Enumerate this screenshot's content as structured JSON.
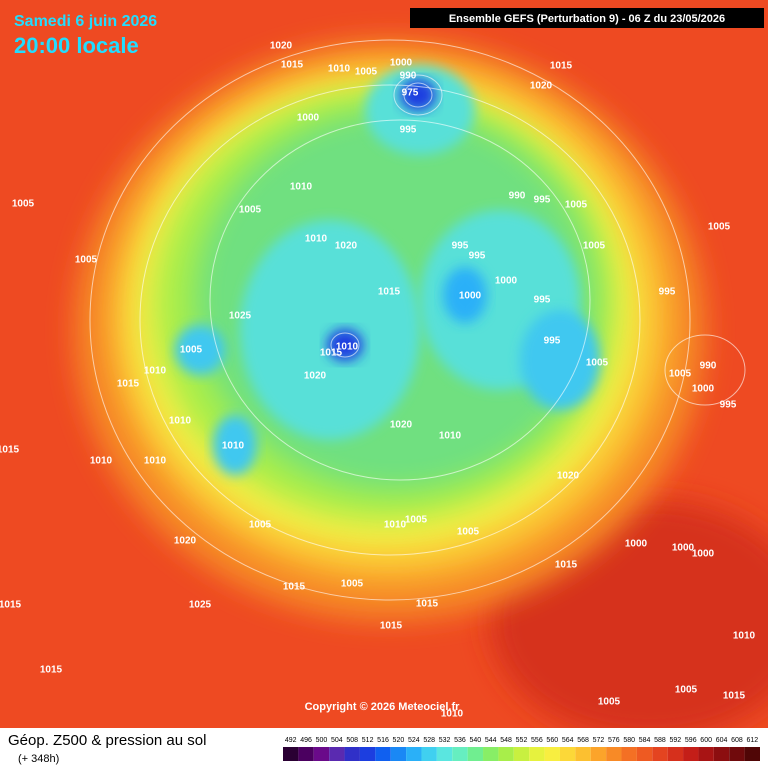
{
  "header": {
    "date": "Samedi 6 juin 2026",
    "time": "20:00 locale",
    "model": "Ensemble GEFS  (Perturbation 9)  -  06 Z du 23/05/2026"
  },
  "copyright": "Copyright © 2026 Meteociel.fr",
  "footer": {
    "title": "Géop. Z500 & pression au sol",
    "lead": "(+ 348h)"
  },
  "colorbar": {
    "values": [
      492,
      496,
      500,
      504,
      508,
      512,
      516,
      520,
      524,
      528,
      532,
      536,
      540,
      544,
      548,
      552,
      556,
      560,
      564,
      568,
      572,
      576,
      580,
      584,
      588,
      592,
      596,
      600,
      604,
      608,
      612
    ],
    "colors": [
      "#2a0033",
      "#4b0060",
      "#6a0a8a",
      "#5a2ab0",
      "#3030c8",
      "#1c3ee0",
      "#1060f0",
      "#1a88f5",
      "#2ab0f8",
      "#40d0f0",
      "#5ae6e0",
      "#66eec0",
      "#70ee90",
      "#88ee66",
      "#a8ee4a",
      "#c8f040",
      "#e6f23e",
      "#f8ee40",
      "#fcd838",
      "#fcc030",
      "#fca42a",
      "#f88a26",
      "#f47024",
      "#ee5a22",
      "#e44420",
      "#d6301c",
      "#c41e18",
      "#a81414",
      "#8c0e10",
      "#700a0c",
      "#500606"
    ]
  },
  "isobars": {
    "labels": [
      "1020",
      "1015",
      "1010",
      "1005",
      "1000",
      "990",
      "975",
      "1015",
      "1020",
      "1000",
      "995",
      "1010",
      "990",
      "995",
      "1005",
      "1005",
      "1010",
      "1020",
      "995",
      "995",
      "1005",
      "1005",
      "1005",
      "1000",
      "1015",
      "1000",
      "995",
      "995",
      "1025",
      "1010",
      "1015",
      "1005",
      "995",
      "1005",
      "990",
      "1020",
      "1015",
      "1010",
      "1005",
      "1000",
      "995",
      "1010",
      "1020",
      "1010",
      "1010",
      "1015",
      "1010",
      "1010",
      "1020",
      "1005",
      "1010",
      "1005",
      "1005",
      "1020",
      "1000",
      "1000",
      "1000",
      "1015",
      "1005",
      "1015",
      "1025",
      "1015",
      "1015",
      "1015",
      "1010",
      "1015",
      "1005",
      "1005",
      "1015",
      "1010",
      "1005"
    ]
  }
}
